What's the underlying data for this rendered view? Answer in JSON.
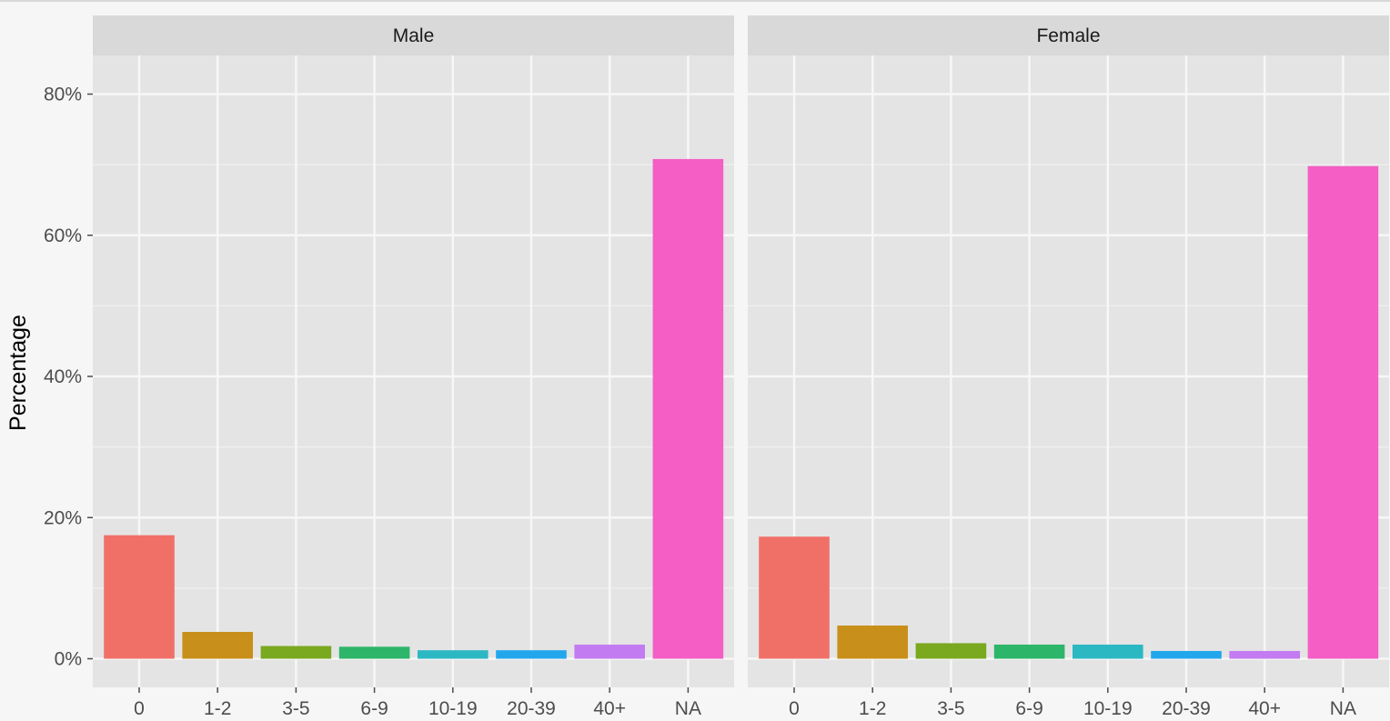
{
  "chart_data": {
    "type": "bar",
    "ylabel": "Percentage",
    "xlabel": "",
    "ylim": [
      0,
      0.88
    ],
    "yticks": [
      0,
      0.2,
      0.4,
      0.6,
      0.8
    ],
    "ytick_labels": [
      "0%",
      "20%",
      "40%",
      "60%",
      "80%"
    ],
    "categories": [
      "0",
      "1-2",
      "3-5",
      "6-9",
      "10-19",
      "20-39",
      "40+",
      "NA"
    ],
    "colors": [
      "#F07068",
      "#C8901A",
      "#7AA81E",
      "#2DB56A",
      "#2CB8C3",
      "#22A7EC",
      "#C37BF2",
      "#F45EC5"
    ],
    "grid": true,
    "legend": "none",
    "panels": [
      {
        "name": "Male",
        "values": [
          0.175,
          0.038,
          0.018,
          0.017,
          0.012,
          0.012,
          0.02,
          0.708
        ]
      },
      {
        "name": "Female",
        "values": [
          0.173,
          0.047,
          0.022,
          0.02,
          0.02,
          0.011,
          0.011,
          0.698
        ]
      }
    ]
  }
}
